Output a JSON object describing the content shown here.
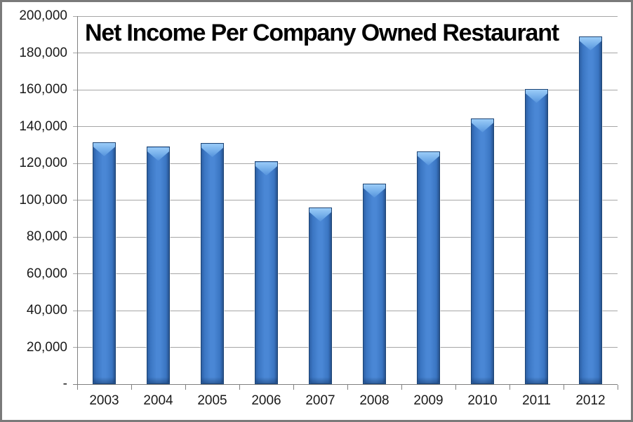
{
  "window": {
    "background_color": "#ffffff",
    "border_color": "#7a7a7a"
  },
  "chart_data": {
    "type": "bar",
    "title": "Net Income Per Company Owned Restaurant",
    "categories": [
      "2003",
      "2004",
      "2005",
      "2006",
      "2007",
      "2008",
      "2009",
      "2010",
      "2011",
      "2012"
    ],
    "values": [
      131500,
      129000,
      131000,
      121000,
      96000,
      109000,
      126500,
      144500,
      160500,
      189000
    ],
    "xlabel": "",
    "ylabel": "",
    "ylim": [
      0,
      200000
    ],
    "ytick_step": 20000,
    "ytick_labels": [
      "-",
      "20,000",
      "40,000",
      "60,000",
      "80,000",
      "100,000",
      "120,000",
      "140,000",
      "160,000",
      "180,000",
      "200,000"
    ],
    "grid": true,
    "legend": false,
    "colors": {
      "bar_fill": "#4a87d5",
      "bar_edge": "#1d4474",
      "bar_highlight": "#9bccf8",
      "gridline": "#a6a6a6",
      "axis": "#808080",
      "text": "#1a1a1a",
      "title_text": "#000000"
    }
  }
}
